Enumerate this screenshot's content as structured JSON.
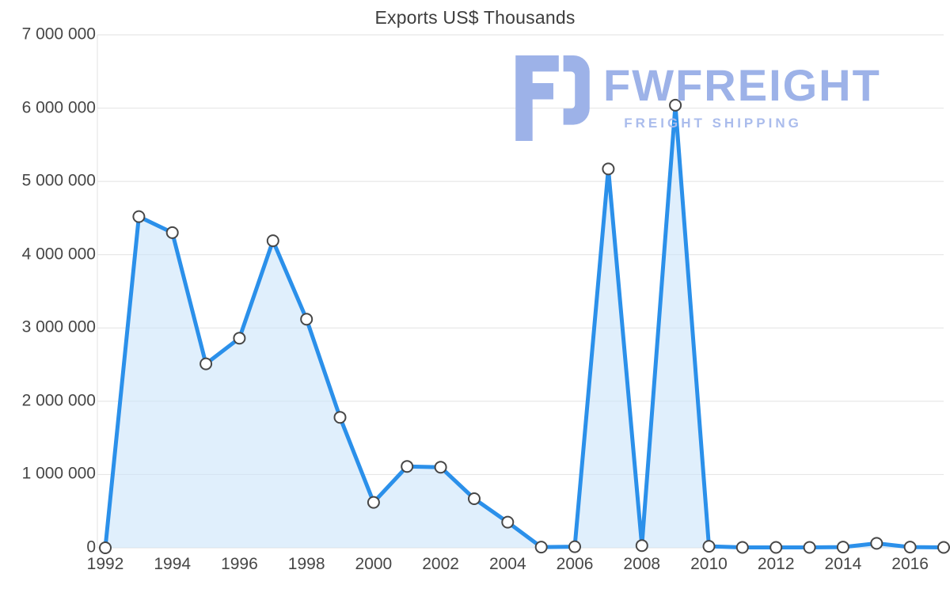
{
  "logo": {
    "text": "FWFREIGHT",
    "subtitle": "FREIGHT SHIPPING",
    "color": "#9db2e8",
    "subtitle_color": "#aabcec"
  },
  "chart_data": {
    "type": "area",
    "title": "Exports US$ Thousands",
    "xlabel": "",
    "ylabel": "",
    "x": [
      1992,
      1993,
      1994,
      1995,
      1996,
      1997,
      1998,
      1999,
      2000,
      2001,
      2002,
      2003,
      2004,
      2005,
      2006,
      2007,
      2008,
      2009,
      2010,
      2011,
      2012,
      2013,
      2014,
      2015,
      2016,
      2017
    ],
    "values": [
      0,
      4520000,
      4300000,
      2510000,
      2860000,
      4190000,
      3120000,
      1780000,
      620000,
      1110000,
      1100000,
      670000,
      350000,
      10000,
      15000,
      5170000,
      30000,
      6040000,
      20000,
      5000,
      5000,
      5000,
      10000,
      60000,
      10000,
      5000
    ],
    "xlim": [
      1992,
      2017
    ],
    "ylim": [
      0,
      7000000
    ],
    "xtick_values": [
      1992,
      1994,
      1996,
      1998,
      2000,
      2002,
      2004,
      2006,
      2008,
      2010,
      2012,
      2014,
      2016
    ],
    "xtick_labels": [
      "1992",
      "1994",
      "1996",
      "1998",
      "2000",
      "2002",
      "2004",
      "2006",
      "2008",
      "2010",
      "2012",
      "2014",
      "2016"
    ],
    "ytick_values": [
      0,
      1000000,
      2000000,
      3000000,
      4000000,
      5000000,
      6000000,
      7000000
    ],
    "ytick_labels": [
      "0",
      "1 000 000",
      "2 000 000",
      "3 000 000",
      "4 000 000",
      "5 000 000",
      "6 000 000",
      "7 000 000"
    ],
    "grid": true,
    "legend": "none",
    "colors": {
      "line": "#2b90ea",
      "fill": "#cce4fa",
      "marker_fill": "#ffffff",
      "marker_stroke": "#474747",
      "grid": "#e2e2e2",
      "axis_text": "#464646",
      "title_text": "#3d3d3d"
    }
  }
}
